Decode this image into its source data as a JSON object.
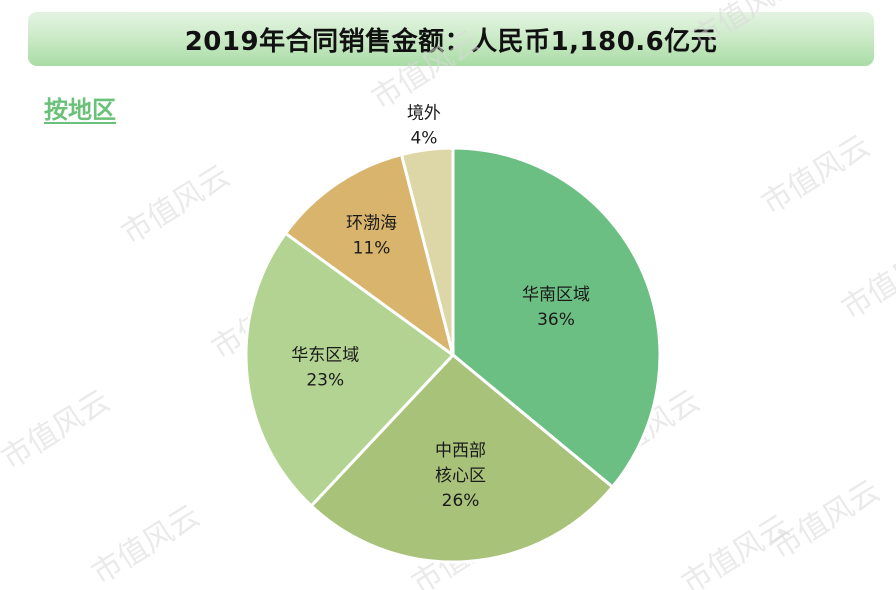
{
  "header": {
    "title": "2019年合同销售金额：人民币1,180.6亿元",
    "subtitle": "按地区"
  },
  "watermark": "市值风云",
  "colors": {
    "title_bar": "#b9e3b5",
    "subtitle": "#6cc17a",
    "slice_border": "#ffffff"
  },
  "chart_data": {
    "type": "pie",
    "slices": [
      {
        "label_lines": [
          "华南区域"
        ],
        "value": 36,
        "value_label": "36%",
        "color": "#6cbf82"
      },
      {
        "label_lines": [
          "中西部",
          "核心区"
        ],
        "value": 26,
        "value_label": "26%",
        "color": "#a9c27a"
      },
      {
        "label_lines": [
          "华东区域"
        ],
        "value": 23,
        "value_label": "23%",
        "color": "#b3d392"
      },
      {
        "label_lines": [
          "环渤海"
        ],
        "value": 11,
        "value_label": "11%",
        "color": "#d8b46c"
      },
      {
        "label_lines": [
          "境外"
        ],
        "value": 4,
        "value_label": "4%",
        "color": "#ddd6a6"
      }
    ]
  }
}
